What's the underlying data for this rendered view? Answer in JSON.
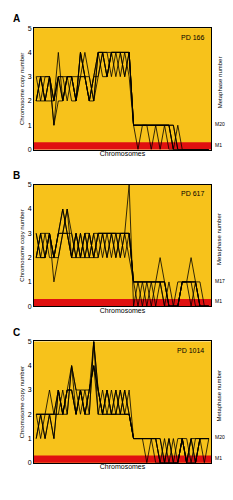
{
  "chart_data": [
    {
      "type": "line",
      "label": "A",
      "title": "PD 166",
      "x_label": "Chromosomes",
      "y_label": "Chromosome copy number",
      "annotations": [
        "Metaphase number",
        "M20",
        "M1"
      ],
      "color": "#000000",
      "tick_labels": "y",
      "ylim": [
        0,
        5
      ],
      "yticks": [
        0,
        1,
        2,
        3,
        4,
        5
      ],
      "categories": [
        null,
        null,
        null,
        null,
        null,
        null,
        null,
        null,
        null,
        null,
        null,
        null,
        null,
        null,
        null,
        null,
        null,
        null,
        null,
        null,
        null,
        null,
        null,
        null,
        null,
        null,
        null,
        null,
        null,
        null,
        null,
        null,
        null,
        null,
        null,
        null,
        null,
        null,
        null,
        null
      ],
      "series": [
        {
          "values": [
            2,
            3,
            2,
            3,
            1,
            3,
            2,
            3,
            3,
            2,
            4,
            3,
            2,
            3,
            4,
            4,
            3,
            4,
            4,
            4,
            3,
            4,
            1,
            1,
            1,
            1,
            1,
            1,
            1,
            1,
            1,
            0,
            0,
            0,
            0,
            0,
            0,
            0,
            0,
            0
          ]
        },
        {
          "values": [
            2,
            2,
            3,
            3,
            2,
            3,
            3,
            2,
            3,
            2,
            3,
            4,
            3,
            2,
            3,
            4,
            3,
            4,
            4,
            3,
            4,
            4,
            1,
            1,
            1,
            1,
            0,
            1,
            1,
            1,
            1,
            1,
            0,
            0,
            0,
            0,
            0,
            0,
            0,
            0
          ]
        },
        {
          "values": [
            3,
            3,
            2,
            2,
            2,
            3,
            2,
            3,
            3,
            3,
            3,
            3,
            2,
            3,
            3,
            4,
            4,
            3,
            4,
            4,
            4,
            3,
            1,
            1,
            1,
            1,
            1,
            1,
            1,
            1,
            0,
            0,
            0,
            0,
            0,
            0,
            0,
            0,
            0,
            0
          ]
        },
        {
          "values": [
            2,
            3,
            3,
            3,
            1,
            2,
            2,
            3,
            2,
            2,
            4,
            3,
            3,
            2,
            4,
            3,
            3,
            4,
            3,
            4,
            4,
            4,
            1,
            0,
            1,
            1,
            1,
            1,
            1,
            1,
            1,
            0,
            0,
            0,
            0,
            0,
            0,
            0,
            0,
            0
          ]
        },
        {
          "values": [
            2,
            3,
            2,
            3,
            2,
            3,
            3,
            3,
            3,
            2,
            3,
            3,
            2,
            3,
            4,
            4,
            4,
            4,
            4,
            4,
            3,
            4,
            1,
            1,
            1,
            1,
            1,
            1,
            0,
            1,
            1,
            0,
            1,
            0,
            0,
            0,
            0,
            0,
            0,
            0
          ]
        },
        {
          "values": [
            3,
            2,
            2,
            3,
            2,
            4,
            2,
            3,
            3,
            2,
            4,
            3,
            2,
            2,
            4,
            4,
            3,
            4,
            4,
            4,
            4,
            4,
            1,
            1,
            1,
            1,
            1,
            1,
            1,
            1,
            1,
            1,
            0,
            0,
            0,
            0,
            0,
            0,
            0,
            0
          ]
        }
      ]
    },
    {
      "type": "line",
      "label": "B",
      "title": "PD 617",
      "x_label": "Chromosomes",
      "y_label": "Chromosome copy number",
      "annotations": [
        "Metaphase number",
        "M17",
        "M1"
      ],
      "color": "#000000",
      "tick_labels": "y",
      "ylim": [
        0,
        5
      ],
      "yticks": [
        0,
        1,
        2,
        3,
        4,
        5
      ],
      "categories": [
        null,
        null,
        null,
        null,
        null,
        null,
        null,
        null,
        null,
        null,
        null,
        null,
        null,
        null,
        null,
        null,
        null,
        null,
        null,
        null,
        null,
        null,
        null,
        null,
        null,
        null,
        null,
        null,
        null,
        null,
        null,
        null,
        null,
        null,
        null,
        null,
        null,
        null,
        null,
        null
      ],
      "series": [
        {
          "values": [
            2,
            3,
            2,
            3,
            2,
            3,
            4,
            3,
            2,
            3,
            2,
            3,
            3,
            2,
            3,
            3,
            2,
            3,
            3,
            3,
            2,
            3,
            1,
            1,
            1,
            0,
            1,
            1,
            1,
            0,
            0,
            0,
            0,
            1,
            1,
            1,
            0,
            0,
            0,
            0
          ]
        },
        {
          "values": [
            2,
            2,
            3,
            3,
            2,
            3,
            3,
            4,
            3,
            2,
            3,
            2,
            2,
            3,
            2,
            3,
            3,
            2,
            3,
            2,
            3,
            3,
            1,
            1,
            0,
            1,
            1,
            1,
            2,
            1,
            0,
            0,
            0,
            1,
            1,
            1,
            1,
            0,
            0,
            0
          ]
        },
        {
          "values": [
            3,
            2,
            2,
            3,
            1,
            2,
            3,
            3,
            2,
            3,
            2,
            3,
            2,
            2,
            3,
            3,
            3,
            3,
            2,
            3,
            3,
            2,
            1,
            0,
            1,
            1,
            1,
            1,
            1,
            1,
            0,
            0,
            1,
            1,
            1,
            0,
            1,
            0,
            0,
            0
          ]
        },
        {
          "values": [
            2,
            3,
            3,
            2,
            2,
            3,
            4,
            3,
            2,
            2,
            3,
            2,
            3,
            2,
            3,
            2,
            3,
            3,
            3,
            2,
            3,
            3,
            1,
            1,
            1,
            1,
            0,
            1,
            1,
            1,
            0,
            0,
            0,
            1,
            1,
            1,
            1,
            0,
            0,
            0
          ]
        },
        {
          "values": [
            2,
            3,
            2,
            3,
            2,
            2,
            3,
            3,
            3,
            2,
            2,
            3,
            2,
            3,
            3,
            3,
            2,
            3,
            3,
            3,
            3,
            5,
            0,
            1,
            1,
            1,
            1,
            1,
            1,
            0,
            1,
            0,
            0,
            1,
            1,
            2,
            1,
            0,
            0,
            0
          ]
        },
        {
          "values": [
            3,
            2,
            2,
            3,
            2,
            3,
            3,
            4,
            2,
            3,
            2,
            2,
            3,
            2,
            2,
            3,
            3,
            3,
            2,
            3,
            3,
            3,
            1,
            1,
            1,
            1,
            1,
            0,
            1,
            1,
            0,
            0,
            0,
            1,
            1,
            1,
            1,
            1,
            0,
            0
          ]
        }
      ]
    },
    {
      "type": "line",
      "label": "C",
      "title": "PD 1014",
      "x_label": "Chromosomes",
      "y_label": "Chromosome copy number",
      "annotations": [
        "Metaphase number",
        "M20",
        "M1"
      ],
      "color": "#000000",
      "tick_labels": "y",
      "ylim": [
        0,
        5
      ],
      "yticks": [
        0,
        1,
        2,
        3,
        4,
        5
      ],
      "categories": [
        null,
        null,
        null,
        null,
        null,
        null,
        null,
        null,
        null,
        null,
        null,
        null,
        null,
        null,
        null,
        null,
        null,
        null,
        null,
        null,
        null,
        null,
        null,
        null,
        null,
        null,
        null,
        null,
        null,
        null,
        null,
        null,
        null,
        null,
        null,
        null,
        null,
        null,
        null,
        null
      ],
      "series": [
        {
          "values": [
            2,
            2,
            1,
            2,
            2,
            3,
            2,
            3,
            4,
            2,
            3,
            2,
            3,
            5,
            3,
            2,
            3,
            2,
            2,
            3,
            2,
            2,
            1,
            1,
            1,
            1,
            1,
            1,
            0,
            0,
            1,
            0,
            0,
            1,
            0,
            1,
            0,
            1,
            1,
            1
          ]
        },
        {
          "values": [
            1,
            2,
            2,
            2,
            1,
            3,
            2,
            3,
            3,
            2,
            3,
            2,
            3,
            4,
            3,
            2,
            2,
            2,
            3,
            2,
            2,
            3,
            1,
            1,
            1,
            1,
            1,
            1,
            1,
            0,
            0,
            0,
            1,
            1,
            0,
            0,
            0,
            1,
            1,
            1
          ]
        },
        {
          "values": [
            2,
            1,
            2,
            3,
            2,
            2,
            3,
            2,
            4,
            3,
            2,
            3,
            2,
            5,
            2,
            3,
            2,
            3,
            2,
            2,
            3,
            2,
            1,
            1,
            1,
            0,
            1,
            1,
            0,
            0,
            0,
            1,
            0,
            1,
            0,
            1,
            1,
            1,
            0,
            1
          ]
        },
        {
          "values": [
            2,
            2,
            2,
            2,
            1,
            3,
            2,
            3,
            3,
            2,
            3,
            2,
            3,
            4,
            3,
            2,
            3,
            2,
            2,
            3,
            2,
            2,
            1,
            1,
            1,
            1,
            1,
            1,
            1,
            0,
            0,
            0,
            0,
            1,
            1,
            0,
            0,
            1,
            1,
            1
          ]
        },
        {
          "values": [
            1,
            2,
            2,
            2,
            2,
            3,
            2,
            2,
            4,
            3,
            3,
            2,
            2,
            5,
            3,
            2,
            2,
            2,
            3,
            2,
            2,
            2,
            1,
            1,
            1,
            1,
            1,
            0,
            0,
            1,
            0,
            0,
            0,
            1,
            0,
            1,
            0,
            1,
            1,
            1
          ]
        },
        {
          "values": [
            2,
            2,
            1,
            2,
            2,
            2,
            2,
            3,
            3,
            2,
            3,
            3,
            3,
            4,
            2,
            2,
            3,
            2,
            2,
            2,
            3,
            2,
            1,
            1,
            1,
            1,
            1,
            1,
            0,
            0,
            1,
            0,
            0,
            1,
            0,
            0,
            1,
            1,
            1,
            1
          ]
        }
      ]
    }
  ]
}
